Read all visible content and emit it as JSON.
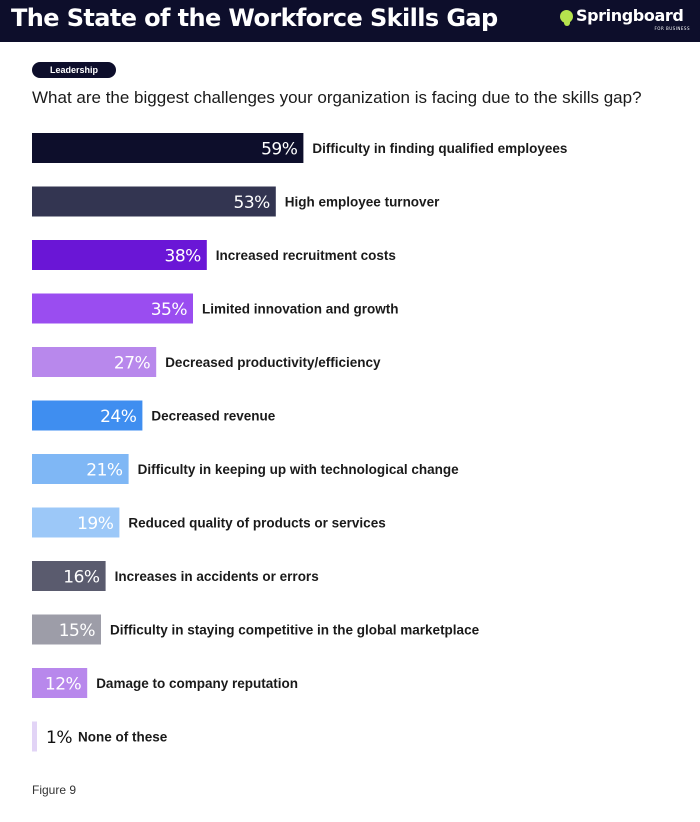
{
  "header": {
    "title": "The State of the Workforce Skills Gap",
    "logo_text": "Springboard",
    "logo_subtext": "FOR BUSINESS"
  },
  "tag": "Leadership",
  "question": "What are the biggest challenges your organization is facing due to the skills gap?",
  "footer": "Figure 9",
  "chart_data": {
    "type": "bar",
    "orientation": "horizontal",
    "title": "",
    "xlabel": "",
    "ylabel": "",
    "xlim": [
      0,
      100
    ],
    "grid": false,
    "categories": [
      "Difficulty in finding qualified employees",
      "High employee turnover",
      "Increased recruitment costs",
      "Limited innovation and growth",
      "Decreased productivity/efficiency",
      "Decreased revenue",
      "Difficulty in keeping up with technological change",
      "Reduced quality of products or services",
      "Increases in accidents or errors",
      "Difficulty in staying competitive in the global marketplace",
      "Damage to company reputation",
      "None of these"
    ],
    "values": [
      59,
      53,
      38,
      35,
      27,
      24,
      21,
      19,
      16,
      15,
      12,
      1
    ],
    "value_labels": [
      "59%",
      "53%",
      "38%",
      "35%",
      "27%",
      "24%",
      "21%",
      "19%",
      "16%",
      "15%",
      "12%",
      "1%"
    ],
    "colors": [
      "#0d0e2b",
      "#333551",
      "#6a16d6",
      "#9a4df0",
      "#b888ec",
      "#3f8ef0",
      "#7fb7f5",
      "#9cc8f8",
      "#5a5b6e",
      "#9d9da8",
      "#b888ec",
      "#e2d4f6"
    ]
  }
}
